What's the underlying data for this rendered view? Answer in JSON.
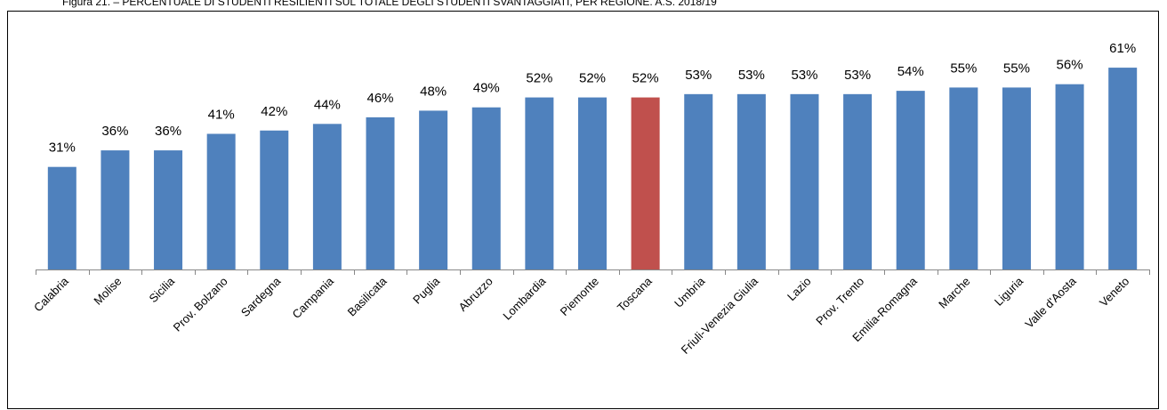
{
  "chart_data": {
    "type": "bar",
    "title": "Figura 21. – PERCENTUALE DI STUDENTI RESILIENTI SUL TOTALE DEGLI STUDENTI SVANTAGGIATI, PER REGIONE. A.S. 2018/19",
    "categories": [
      "Calabria",
      "Molise",
      "Sicilia",
      "Prov. Bolzano",
      "Sardegna",
      "Campania",
      "Basilicata",
      "Puglia",
      "Abruzzo",
      "Lombardia",
      "Piemonte",
      "Toscana",
      "Umbria",
      "Friuli-Venezia Giulia",
      "Lazio",
      "Prov. Trento",
      "Emilia-Romagna",
      "Marche",
      "Liguria",
      "Valle d'Aosta",
      "Veneto"
    ],
    "values": [
      31,
      36,
      36,
      41,
      42,
      44,
      46,
      48,
      49,
      52,
      52,
      52,
      53,
      53,
      53,
      53,
      54,
      55,
      55,
      56,
      61
    ],
    "value_labels": [
      "31%",
      "36%",
      "36%",
      "41%",
      "42%",
      "44%",
      "46%",
      "48%",
      "49%",
      "52%",
      "52%",
      "52%",
      "53%",
      "53%",
      "53%",
      "53%",
      "54%",
      "55%",
      "55%",
      "56%",
      "61%"
    ],
    "colors": [
      "#4f81bd",
      "#4f81bd",
      "#4f81bd",
      "#4f81bd",
      "#4f81bd",
      "#4f81bd",
      "#4f81bd",
      "#4f81bd",
      "#4f81bd",
      "#4f81bd",
      "#4f81bd",
      "#c0504d",
      "#4f81bd",
      "#4f81bd",
      "#4f81bd",
      "#4f81bd",
      "#4f81bd",
      "#4f81bd",
      "#4f81bd",
      "#4f81bd",
      "#4f81bd"
    ]
  }
}
